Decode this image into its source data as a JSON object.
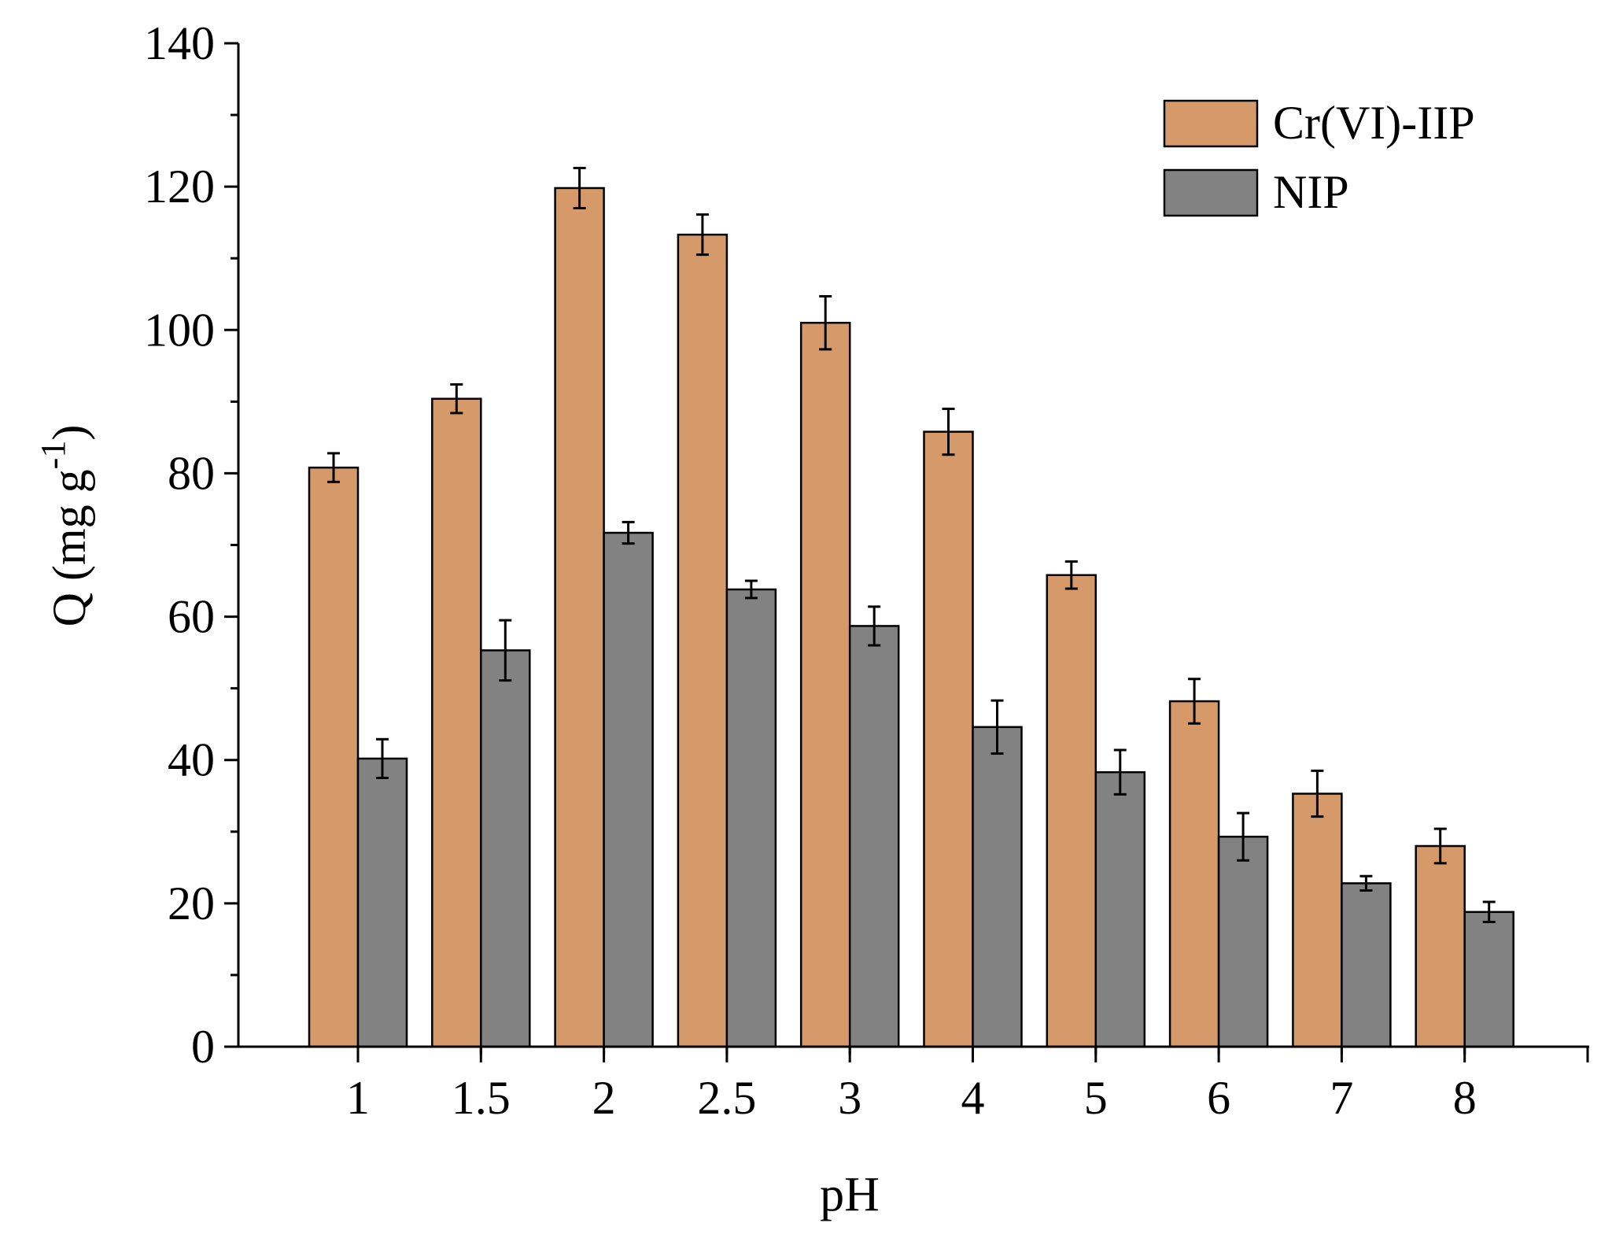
{
  "chart_data": {
    "type": "bar",
    "title": "",
    "xlabel": "pH",
    "ylabel_main": "Q (mg g",
    "ylabel_sup": "-1",
    "ylabel_close": ")",
    "categories": [
      "1",
      "1.5",
      "2",
      "2.5",
      "3",
      "4",
      "5",
      "6",
      "7",
      "8"
    ],
    "ylim": [
      0,
      140
    ],
    "yticks": [
      0,
      20,
      40,
      60,
      80,
      100,
      120,
      140
    ],
    "ytick_labels": [
      "0",
      "20",
      "40",
      "60",
      "80",
      "100",
      "120",
      "140"
    ],
    "legend_position": "top-right",
    "series": [
      {
        "name": "Cr(VI)-IIP",
        "color": "#d6996a",
        "values": [
          80.8,
          90.4,
          119.8,
          113.3,
          101.0,
          85.8,
          65.8,
          48.2,
          35.3,
          28.0
        ],
        "errors": [
          2.0,
          2.0,
          2.8,
          2.8,
          3.7,
          3.2,
          1.9,
          3.1,
          3.2,
          2.4
        ]
      },
      {
        "name": "NIP",
        "color": "#828282",
        "values": [
          40.2,
          55.3,
          71.7,
          63.8,
          58.7,
          44.6,
          38.3,
          29.3,
          22.8,
          18.8
        ],
        "errors": [
          2.7,
          4.2,
          1.5,
          1.2,
          2.7,
          3.7,
          3.1,
          3.3,
          1.0,
          1.4
        ]
      }
    ]
  }
}
